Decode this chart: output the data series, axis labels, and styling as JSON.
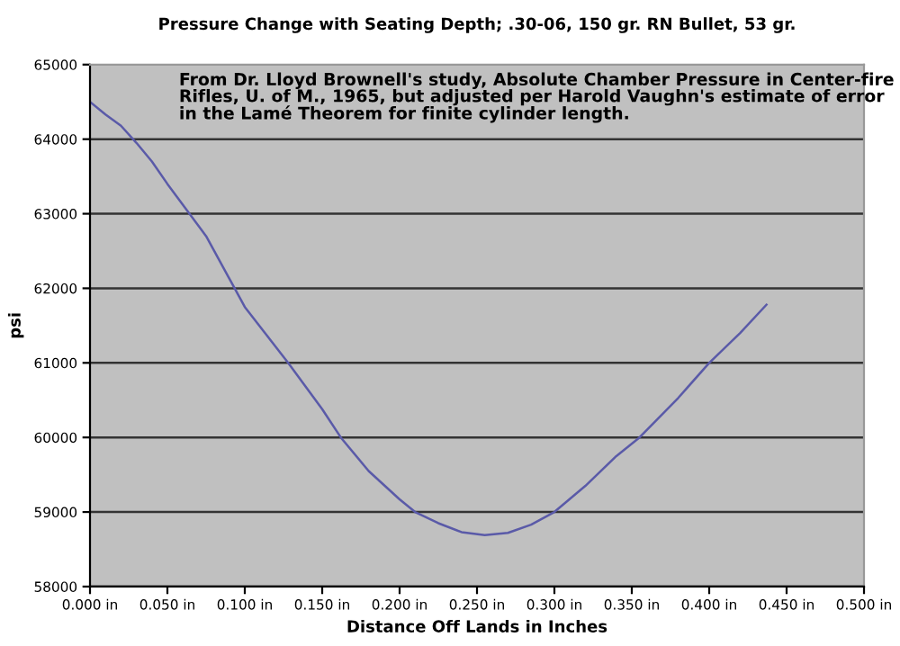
{
  "chart_data": {
    "type": "line",
    "title": "Pressure Change with Seating Depth; .30-06, 150 gr. RN Bullet, 53 gr.",
    "xlabel": "Distance Off Lands in Inches",
    "ylabel": "psi",
    "annotations": [
      "From Dr. Lloyd Brownell's study, Absolute Chamber Pressure in Center-fire Rifles, U. of M., 1965, but adjusted per Harold Vaughn's estimate of error in the Lamé Theorem for finite cylinder length."
    ],
    "series": [
      {
        "color": "#5a5aa8",
        "x": [
          0.0,
          0.01,
          0.02,
          0.03,
          0.04,
          0.05,
          0.075,
          0.1,
          0.128,
          0.15,
          0.162,
          0.18,
          0.2,
          0.21,
          0.225,
          0.24,
          0.255,
          0.27,
          0.285,
          0.3,
          0.32,
          0.34,
          0.355,
          0.38,
          0.4,
          0.42,
          0.437
        ],
        "values": [
          64500,
          64330,
          64180,
          63950,
          63700,
          63400,
          62700,
          61750,
          61000,
          60380,
          60000,
          59550,
          59170,
          59000,
          58850,
          58730,
          58690,
          58720,
          58830,
          59000,
          59350,
          59750,
          60000,
          60530,
          61000,
          61400,
          61780
        ]
      }
    ],
    "xlim": [
      0,
      0.5
    ],
    "ylim": [
      58000,
      65000
    ],
    "xticks": [
      {
        "value": 0,
        "label": "0.000 in"
      },
      {
        "value": 0.05,
        "label": "0.050 in"
      },
      {
        "value": 0.1,
        "label": "0.100 in"
      },
      {
        "value": 0.15,
        "label": "0.150 in"
      },
      {
        "value": 0.2,
        "label": "0.200 in"
      },
      {
        "value": 0.25,
        "label": "0.250 in"
      },
      {
        "value": 0.3,
        "label": "0.300 in"
      },
      {
        "value": 0.35,
        "label": "0.350 in"
      },
      {
        "value": 0.4,
        "label": "0.400 in"
      },
      {
        "value": 0.45,
        "label": "0.450 in"
      },
      {
        "value": 0.5,
        "label": "0.500 in"
      }
    ],
    "yticks": [
      58000,
      59000,
      60000,
      61000,
      62000,
      63000,
      64000,
      65000
    ],
    "grid": "y",
    "legend": false
  }
}
